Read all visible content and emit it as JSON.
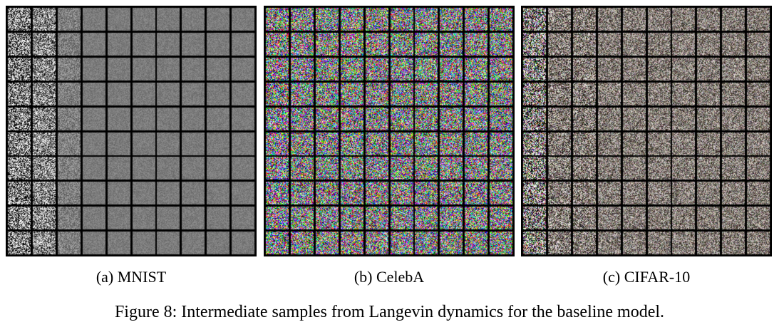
{
  "figure": {
    "caption": "Figure 8: Intermediate samples from Langevin dynamics for the baseline model.",
    "panels": [
      {
        "id": "a",
        "subcaption": "(a) MNIST",
        "image_description": "grid of grayscale sample tiles; first columns noisy, later columns uniform gray",
        "color_mode": "gray",
        "grid": [
          10,
          10
        ]
      },
      {
        "id": "b",
        "subcaption": "(b) CelebA",
        "image_description": "grid of colorful noisy sample tiles",
        "color_mode": "color",
        "grid": [
          10,
          10
        ]
      },
      {
        "id": "c",
        "subcaption": "(c) CIFAR-10",
        "image_description": "grid of noisy sample tiles, muted gray-brown with some colorful columns",
        "color_mode": "muted",
        "grid": [
          10,
          10
        ]
      }
    ]
  }
}
